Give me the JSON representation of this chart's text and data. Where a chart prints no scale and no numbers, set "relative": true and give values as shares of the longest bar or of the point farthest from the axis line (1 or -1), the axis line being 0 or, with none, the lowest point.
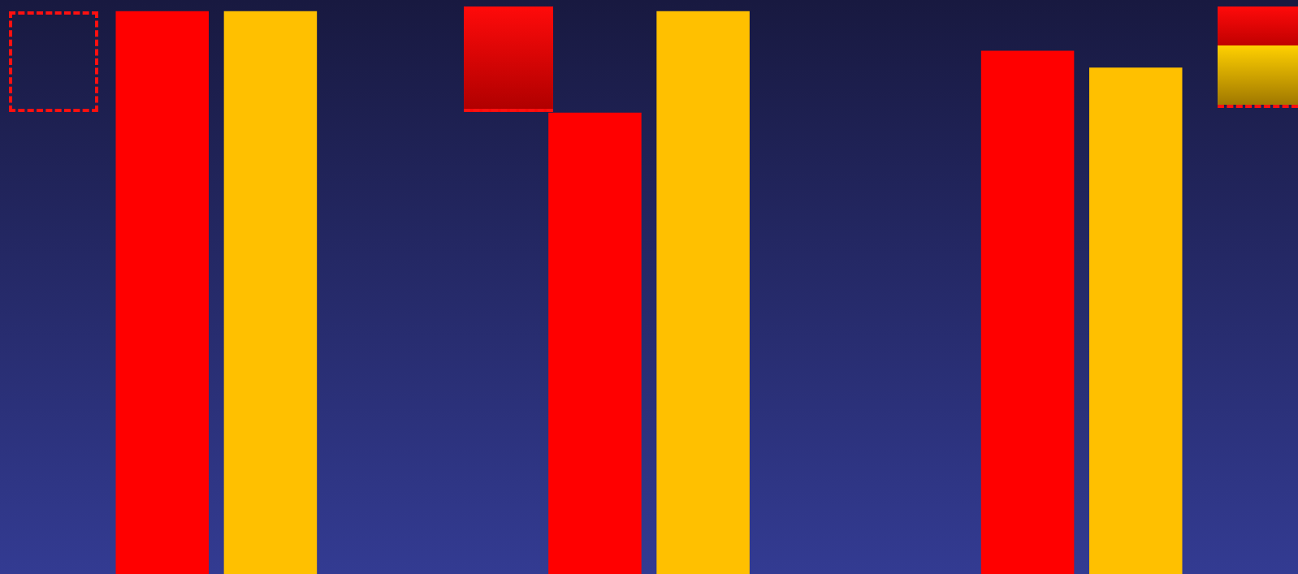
{
  "chart_data": {
    "type": "bar",
    "relative": true,
    "categories": [
      null,
      null,
      null
    ],
    "series": [
      {
        "color": "#ff0000",
        "values": [
          1,
          0.82,
          0.93
        ]
      },
      {
        "color": "#ffc000",
        "values": [
          1,
          1,
          0.9
        ]
      }
    ]
  }
}
